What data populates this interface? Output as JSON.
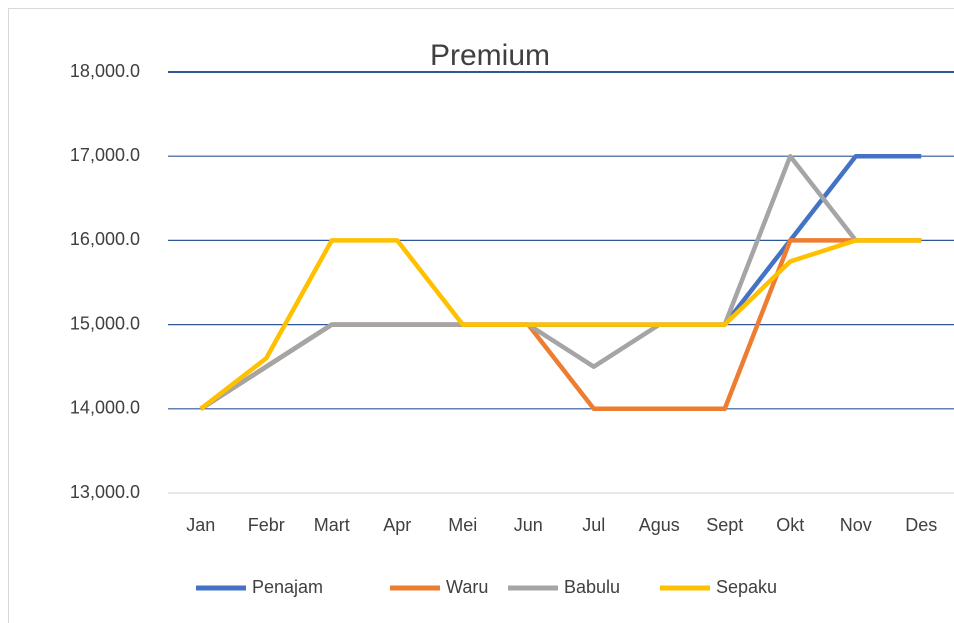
{
  "chart_data": {
    "type": "line",
    "title": "Premium",
    "categories": [
      "Jan",
      "Febr",
      "Mart",
      "Apr",
      "Mei",
      "Jun",
      "Jul",
      "Agus",
      "Sept",
      "Okt",
      "Nov",
      "Des"
    ],
    "series": [
      {
        "name": "Penajam",
        "color": "#4472c4",
        "values": [
          14000,
          14500,
          15000,
          15000,
          15000,
          15000,
          15000,
          15000,
          15000,
          16000,
          17000,
          17000
        ]
      },
      {
        "name": "Waru",
        "color": "#ed7d31",
        "values": [
          14000,
          14500,
          15000,
          15000,
          15000,
          15000,
          14000,
          14000,
          14000,
          16000,
          16000,
          16000
        ]
      },
      {
        "name": "Babulu",
        "color": "#a5a5a5",
        "values": [
          14000,
          14500,
          15000,
          15000,
          15000,
          15000,
          14500,
          15000,
          15000,
          17000,
          16000,
          16000
        ]
      },
      {
        "name": "Sepaku",
        "color": "#ffc000",
        "values": [
          14000,
          14600,
          16000,
          16000,
          15000,
          15000,
          15000,
          15000,
          15000,
          15750,
          16000,
          16000
        ]
      }
    ],
    "ylim": [
      13000,
      18000
    ],
    "yticks": [
      {
        "value": 13000,
        "label": "13,000.0"
      },
      {
        "value": 14000,
        "label": "14,000.0"
      },
      {
        "value": 15000,
        "label": "15,000.0"
      },
      {
        "value": 16000,
        "label": "16,000.0"
      },
      {
        "value": 17000,
        "label": "17,000.0"
      },
      {
        "value": 18000,
        "label": "18,000.0"
      }
    ],
    "grid": true,
    "grid_color": "#2f5597",
    "legend": "bottom"
  }
}
